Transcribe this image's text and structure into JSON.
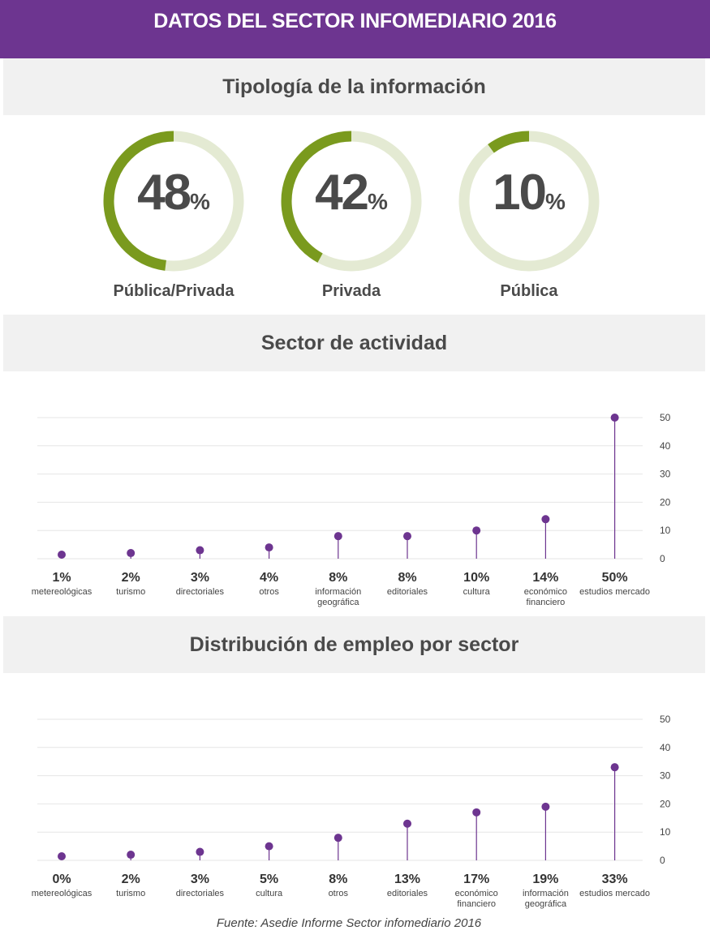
{
  "header": {
    "title": "DATOS DEL SECTOR INFOMEDIARIO 2016"
  },
  "sections": {
    "tipologia": "Tipología de la información",
    "actividad": "Sector de actividad",
    "empleo": "Distribución de empleo por sector"
  },
  "colors": {
    "header_bg": "#6d3590",
    "ring_fill": "#7a9a1e",
    "ring_track": "#e4ead3",
    "marker": "#6d3590"
  },
  "source": "Fuente: Asedie Informe Sector infomediario 2016",
  "chart_data": [
    {
      "type": "pie",
      "subtype": "donut",
      "title": "Tipología de la información",
      "items": [
        {
          "value": 48,
          "value_label": "48",
          "unit": "%",
          "label": "Pública/Privada"
        },
        {
          "value": 42,
          "value_label": "42",
          "unit": "%",
          "label": "Privada"
        },
        {
          "value": 10,
          "value_label": "10",
          "unit": "%",
          "label": "Pública"
        }
      ]
    },
    {
      "type": "scatter",
      "subtype": "lollipop",
      "title": "Sector de actividad",
      "ylim": [
        0,
        50
      ],
      "yticks": [
        "50",
        "40",
        "30",
        "20",
        "10",
        "0"
      ],
      "grid": true,
      "categories": [
        {
          "pct": "1%",
          "label": "metereológicas",
          "value": 1
        },
        {
          "pct": "2%",
          "label": "turismo",
          "value": 2
        },
        {
          "pct": "3%",
          "label": "directoriales",
          "value": 3
        },
        {
          "pct": "4%",
          "label": "otros",
          "value": 4
        },
        {
          "pct": "8%",
          "label": "información geográfica",
          "value": 8
        },
        {
          "pct": "8%",
          "label": "editoriales",
          "value": 8
        },
        {
          "pct": "10%",
          "label": "cultura",
          "value": 10
        },
        {
          "pct": "14%",
          "label": "económico financiero",
          "value": 14
        },
        {
          "pct": "50%",
          "label": "estudios mercado",
          "value": 50
        }
      ]
    },
    {
      "type": "scatter",
      "subtype": "lollipop",
      "title": "Distribución de empleo por sector",
      "ylim": [
        0,
        50
      ],
      "yticks": [
        "50",
        "40",
        "30",
        "20",
        "10",
        "0"
      ],
      "grid": true,
      "categories": [
        {
          "pct": "0%",
          "label": "metereológicas",
          "value": 0
        },
        {
          "pct": "2%",
          "label": "turismo",
          "value": 2
        },
        {
          "pct": "3%",
          "label": "directoriales",
          "value": 3
        },
        {
          "pct": "5%",
          "label": "cultura",
          "value": 5
        },
        {
          "pct": "8%",
          "label": "otros",
          "value": 8
        },
        {
          "pct": "13%",
          "label": "editoriales",
          "value": 13
        },
        {
          "pct": "17%",
          "label": "económico financiero",
          "value": 17
        },
        {
          "pct": "19%",
          "label": "información geográfica",
          "value": 19
        },
        {
          "pct": "33%",
          "label": "estudios mercado",
          "value": 33
        }
      ]
    }
  ]
}
